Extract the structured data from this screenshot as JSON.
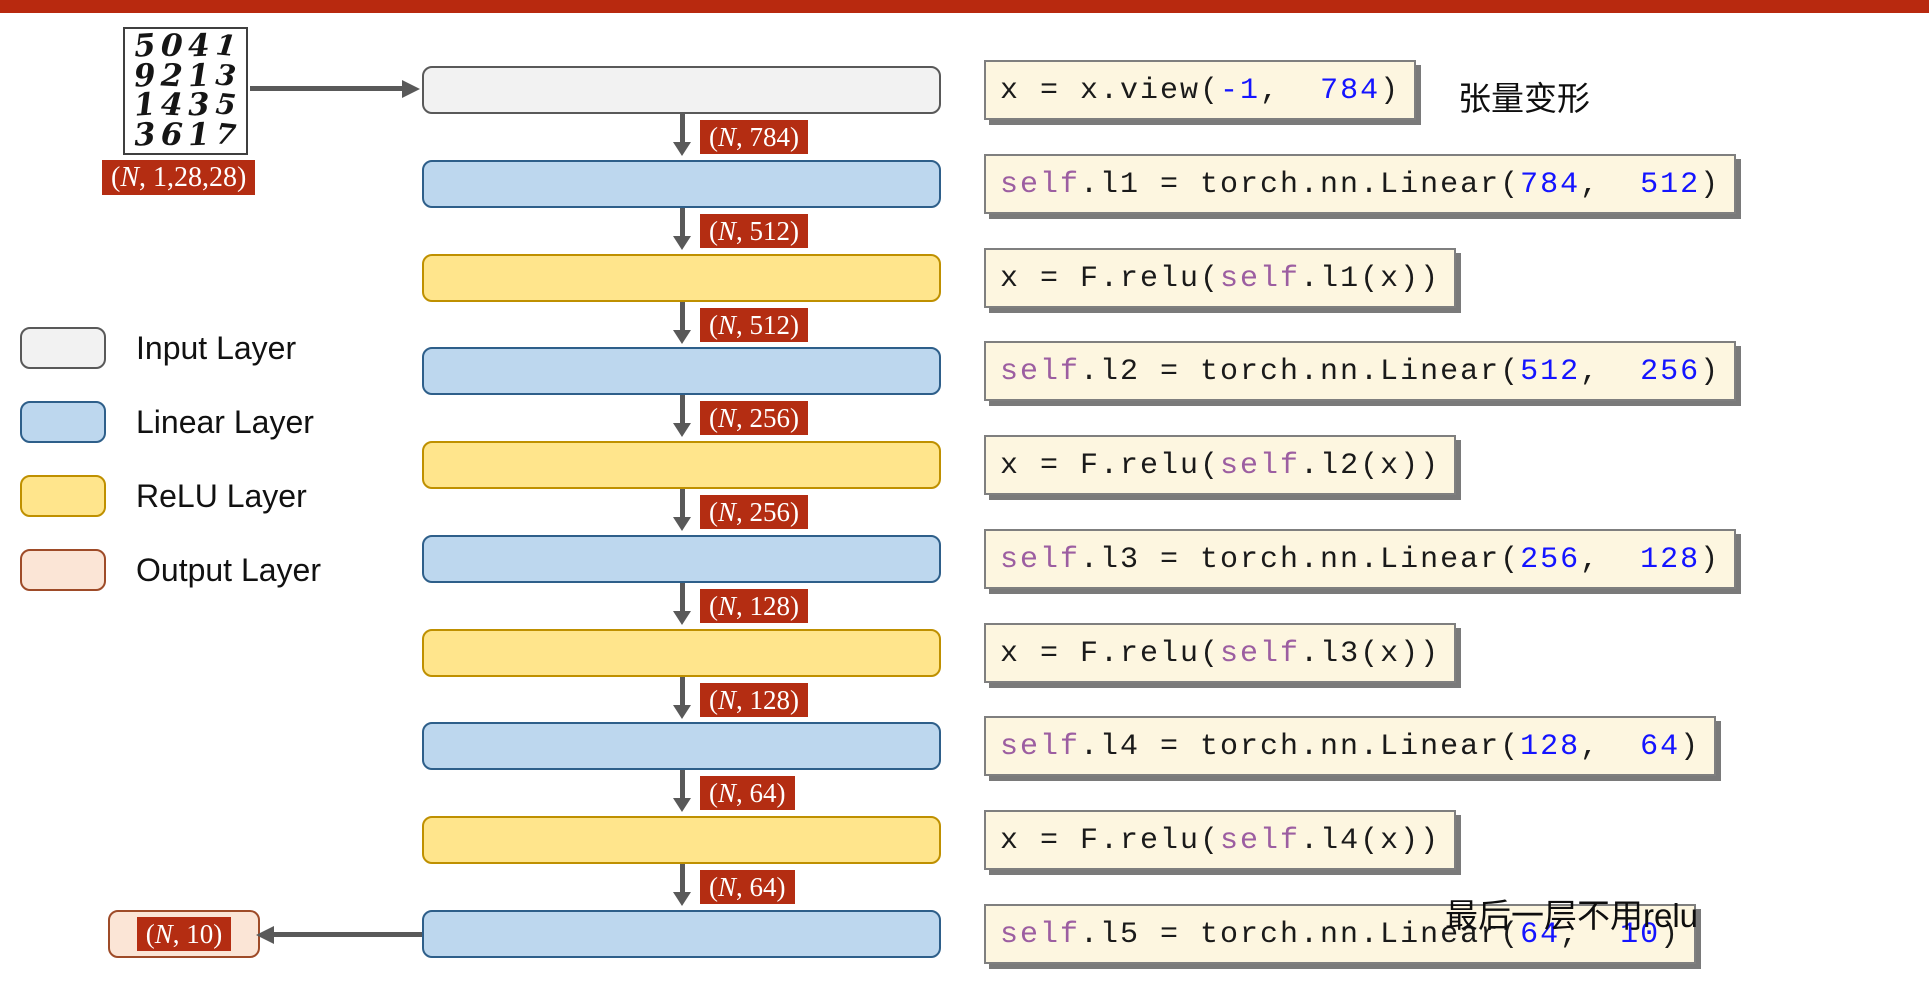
{
  "colors": {
    "top_bar": "#b8290f",
    "badge_red": "#b42d12",
    "input_fill": "#f2f2f2",
    "input_border": "#595959",
    "linear_fill": "#bdd7ee",
    "linear_border": "#2e5f8a",
    "relu_fill": "#ffe58c",
    "relu_border": "#bf9000",
    "output_fill": "#fbe5d6",
    "output_border": "#9e4b28",
    "code_bg": "#fdf6e0",
    "code_border": "#7f7f7f",
    "code_number": "#1414ff",
    "code_self": "#9c5ea1",
    "arrow": "#595959"
  },
  "mnist": {
    "digit_rows": [
      "5041",
      "9213",
      "1435",
      "3617"
    ],
    "shape_label": "(N, 1,28,28)"
  },
  "legend": {
    "items": [
      {
        "label": "Input Layer",
        "type": "input"
      },
      {
        "label": "Linear Layer",
        "type": "linear"
      },
      {
        "label": "ReLU Layer",
        "type": "relu"
      },
      {
        "label": "Output Layer",
        "type": "output"
      }
    ]
  },
  "diagram": {
    "rows": [
      {
        "layer": "input",
        "out_shape": "(N, 784)",
        "code": [
          [
            "x = x.view(",
            "p"
          ],
          [
            "-1",
            "n"
          ],
          [
            ",  ",
            "p"
          ],
          [
            "784",
            "n"
          ],
          [
            ")",
            "p"
          ]
        ]
      },
      {
        "layer": "linear",
        "out_shape": "(N, 512)",
        "code": [
          [
            "self",
            "k"
          ],
          [
            ".l1 = torch.nn.Linear(",
            "p"
          ],
          [
            "784",
            "n"
          ],
          [
            ",  ",
            "p"
          ],
          [
            "512",
            "n"
          ],
          [
            ")",
            "p"
          ]
        ]
      },
      {
        "layer": "relu",
        "out_shape": "(N, 512)",
        "code": [
          [
            "x = F.relu(",
            "p"
          ],
          [
            "self",
            "k"
          ],
          [
            ".l1(x))",
            "p"
          ]
        ]
      },
      {
        "layer": "linear",
        "out_shape": "(N, 256)",
        "code": [
          [
            "self",
            "k"
          ],
          [
            ".l2 = torch.nn.Linear(",
            "p"
          ],
          [
            "512",
            "n"
          ],
          [
            ",  ",
            "p"
          ],
          [
            "256",
            "n"
          ],
          [
            ")",
            "p"
          ]
        ]
      },
      {
        "layer": "relu",
        "out_shape": "(N, 256)",
        "code": [
          [
            "x = F.relu(",
            "p"
          ],
          [
            "self",
            "k"
          ],
          [
            ".l2(x))",
            "p"
          ]
        ]
      },
      {
        "layer": "linear",
        "out_shape": "(N, 128)",
        "code": [
          [
            "self",
            "k"
          ],
          [
            ".l3 = torch.nn.Linear(",
            "p"
          ],
          [
            "256",
            "n"
          ],
          [
            ",  ",
            "p"
          ],
          [
            "128",
            "n"
          ],
          [
            ")",
            "p"
          ]
        ]
      },
      {
        "layer": "relu",
        "out_shape": "(N, 128)",
        "code": [
          [
            "x = F.relu(",
            "p"
          ],
          [
            "self",
            "k"
          ],
          [
            ".l3(x))",
            "p"
          ]
        ]
      },
      {
        "layer": "linear",
        "out_shape": "(N, 64)",
        "code": [
          [
            "self",
            "k"
          ],
          [
            ".l4 = torch.nn.Linear(",
            "p"
          ],
          [
            "128",
            "n"
          ],
          [
            ",  ",
            "p"
          ],
          [
            "64",
            "n"
          ],
          [
            ")",
            "p"
          ]
        ]
      },
      {
        "layer": "relu",
        "out_shape": "(N, 64)",
        "code": [
          [
            "x = F.relu(",
            "p"
          ],
          [
            "self",
            "k"
          ],
          [
            ".l4(x))",
            "p"
          ]
        ]
      },
      {
        "layer": "linear",
        "out_shape": null,
        "code": [
          [
            "self",
            "k"
          ],
          [
            ".l5 = torch.nn.Linear(",
            "p"
          ],
          [
            "64",
            "n"
          ],
          [
            ",  ",
            "p"
          ],
          [
            "10",
            "n"
          ],
          [
            ")",
            "p"
          ]
        ]
      }
    ],
    "output": {
      "shape": "(N, 10)"
    }
  },
  "annotations": [
    {
      "text": "张量变形"
    },
    {
      "text": "最后一层不用relu"
    }
  ]
}
